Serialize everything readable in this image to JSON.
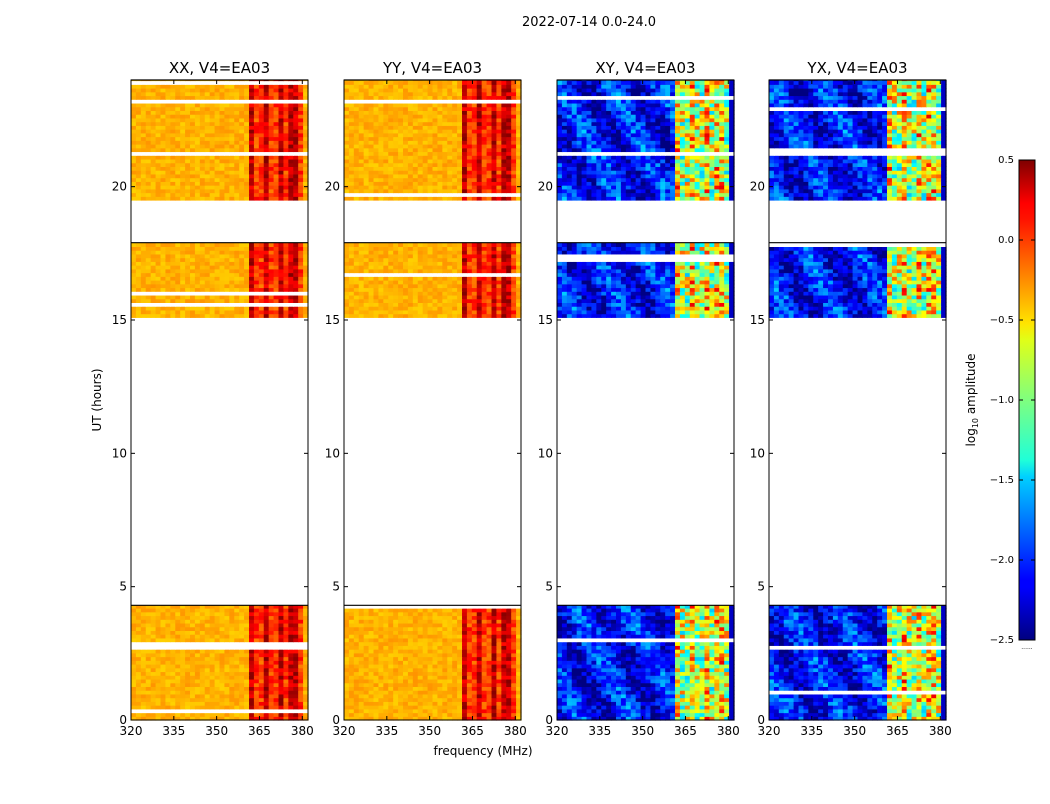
{
  "figure": {
    "suptitle": "2022-07-14 0.0-24.0",
    "xlabel": "frequency (MHz)",
    "ylabel": "UT (hours)"
  },
  "colorbar": {
    "label_prefix": "log",
    "label_sub": "10",
    "label_suffix": " amplitude",
    "range": [
      -2.5,
      0.5
    ],
    "ticks": [
      "0.5",
      "0.0",
      "−0.5",
      "−1.0",
      "−1.5",
      "−2.0",
      "−2.5"
    ],
    "tick_values": [
      0.5,
      0.0,
      -0.5,
      -1.0,
      -1.5,
      -2.0,
      -2.5
    ],
    "colormap": "jet",
    "extend_mark": "......"
  },
  "chart_data": [
    {
      "type": "heatmap",
      "title": "XX, V4=EA03",
      "xlabel": "frequency (MHz)",
      "ylabel": "UT (hours)",
      "xlim": [
        320,
        382
      ],
      "ylim": [
        0,
        24
      ],
      "xticks": [
        "320",
        "335",
        "350",
        "365",
        "380"
      ],
      "xtick_values": [
        320,
        335,
        350,
        365,
        380
      ],
      "yticks": [
        "0",
        "5",
        "10",
        "15",
        "20"
      ],
      "ytick_values": [
        0,
        5,
        10,
        15,
        20
      ],
      "base_level": -0.4,
      "hot_band_mhz": [
        360,
        380
      ],
      "hot_band_level": 0.1,
      "data_intervals_ut": [
        [
          0,
          4.3
        ],
        [
          15.1,
          17.9
        ],
        [
          19.5,
          24
        ]
      ],
      "cross_pol": false
    },
    {
      "type": "heatmap",
      "title": "YY, V4=EA03",
      "xlabel": "frequency (MHz)",
      "ylabel": "UT (hours)",
      "xlim": [
        320,
        382
      ],
      "ylim": [
        0,
        24
      ],
      "xticks": [
        "320",
        "335",
        "350",
        "365",
        "380"
      ],
      "xtick_values": [
        320,
        335,
        350,
        365,
        380
      ],
      "yticks": [
        "0",
        "5",
        "10",
        "15",
        "20"
      ],
      "ytick_values": [
        0,
        5,
        10,
        15,
        20
      ],
      "base_level": -0.4,
      "hot_band_mhz": [
        360,
        380
      ],
      "hot_band_level": 0.1,
      "data_intervals_ut": [
        [
          0,
          4.3
        ],
        [
          15.1,
          17.9
        ],
        [
          19.5,
          24
        ]
      ],
      "cross_pol": false
    },
    {
      "type": "heatmap",
      "title": "XY, V4=EA03",
      "xlabel": "frequency (MHz)",
      "ylabel": "UT (hours)",
      "xlim": [
        320,
        382
      ],
      "ylim": [
        0,
        24
      ],
      "xticks": [
        "320",
        "335",
        "350",
        "365",
        "380"
      ],
      "xtick_values": [
        320,
        335,
        350,
        365,
        380
      ],
      "yticks": [
        "0",
        "5",
        "10",
        "15",
        "20"
      ],
      "ytick_values": [
        0,
        5,
        10,
        15,
        20
      ],
      "base_level": -2.1,
      "hot_band_mhz": [
        360,
        380
      ],
      "hot_band_level": -0.7,
      "data_intervals_ut": [
        [
          0,
          4.3
        ],
        [
          15.1,
          17.9
        ],
        [
          19.5,
          24
        ]
      ],
      "cross_pol": true
    },
    {
      "type": "heatmap",
      "title": "YX, V4=EA03",
      "xlabel": "frequency (MHz)",
      "ylabel": "UT (hours)",
      "xlim": [
        320,
        382
      ],
      "ylim": [
        0,
        24
      ],
      "xticks": [
        "320",
        "335",
        "350",
        "365",
        "380"
      ],
      "xtick_values": [
        320,
        335,
        350,
        365,
        380
      ],
      "yticks": [
        "0",
        "5",
        "10",
        "15",
        "20"
      ],
      "ytick_values": [
        0,
        5,
        10,
        15,
        20
      ],
      "base_level": -2.1,
      "hot_band_mhz": [
        360,
        380
      ],
      "hot_band_level": -0.7,
      "data_intervals_ut": [
        [
          0,
          4.3
        ],
        [
          15.1,
          17.9
        ],
        [
          19.5,
          24
        ]
      ],
      "cross_pol": true
    }
  ]
}
